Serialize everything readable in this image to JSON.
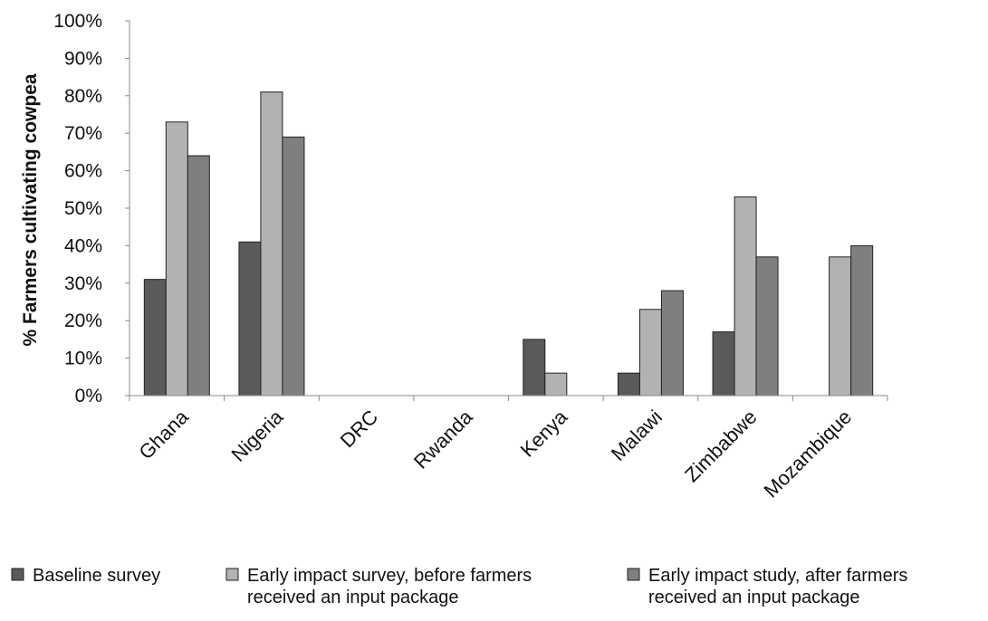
{
  "chart_data": {
    "type": "bar",
    "title": "",
    "xlabel": "",
    "ylabel": "% Farmers cultivating cowpea",
    "ylim": [
      0,
      100
    ],
    "y_ticks": [
      "0%",
      "10%",
      "20%",
      "30%",
      "40%",
      "50%",
      "60%",
      "70%",
      "80%",
      "90%",
      "100%"
    ],
    "categories": [
      "Ghana",
      "Nigeria",
      "DRC",
      "Rwanda",
      "Kenya",
      "Malawi",
      "Zimbabwe",
      "Mozambique"
    ],
    "series": [
      {
        "name": "Baseline survey",
        "name_lines": [
          "Baseline survey"
        ],
        "color": "#5a5a5a",
        "values": [
          31,
          41,
          null,
          null,
          15,
          6,
          17,
          null
        ]
      },
      {
        "name": "Early impact survey, before farmers received an input package",
        "name_lines": [
          "Early impact survey, before farmers",
          "received an input package"
        ],
        "color": "#b2b2b2",
        "values": [
          73,
          81,
          null,
          null,
          6,
          23,
          53,
          37
        ]
      },
      {
        "name": "Early impact study, after farmers received an input package",
        "name_lines": [
          "Early impact study, after farmers",
          "received an input package"
        ],
        "color": "#7f7f7f",
        "values": [
          64,
          69,
          null,
          null,
          null,
          28,
          37,
          40
        ]
      }
    ],
    "grid": false,
    "legend_position": "bottom"
  }
}
